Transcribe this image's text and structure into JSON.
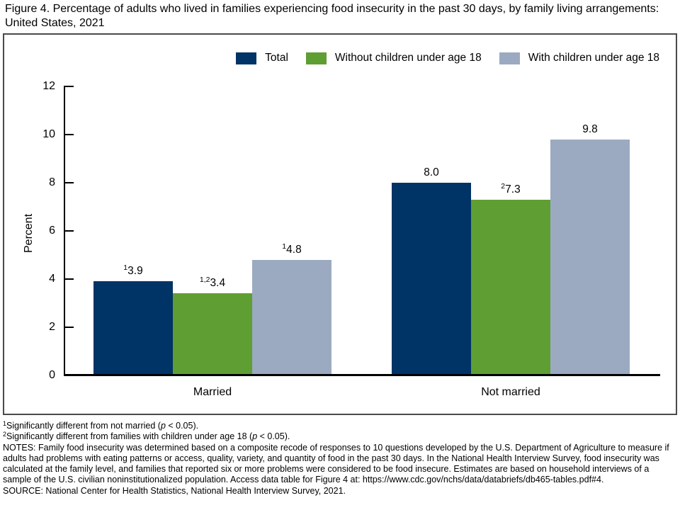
{
  "figure_title": "Figure 4. Percentage of adults who lived in families experiencing food insecurity in the past 30 days, by family living arrangements: United States, 2021",
  "chart_data": {
    "type": "bar",
    "categories": [
      "Married",
      "Not married"
    ],
    "series": [
      {
        "name": "Total",
        "color": "#003366",
        "values": [
          3.9,
          8.0
        ],
        "labels": [
          "3.9",
          "8.0"
        ],
        "sups": [
          "1",
          ""
        ]
      },
      {
        "name": "Without children under age 18",
        "color": "#5f9e33",
        "values": [
          3.4,
          7.3
        ],
        "labels": [
          "3.4",
          "7.3"
        ],
        "sups": [
          "1,2",
          "2"
        ]
      },
      {
        "name": "With children under age 18",
        "color": "#9baac0",
        "values": [
          4.8,
          9.8
        ],
        "labels": [
          "4.8",
          "9.8"
        ],
        "sups": [
          "1",
          ""
        ]
      }
    ],
    "ylabel": "Percent",
    "ylim": [
      0,
      12
    ],
    "yticks": [
      "12",
      "10",
      "8",
      "6",
      "4",
      "2",
      "0"
    ],
    "grid": false,
    "legend_position": "top-right"
  },
  "footnotes": {
    "fn1": {
      "sup": "1",
      "before_p": "Significantly different from not married (",
      "p_var": "p",
      "after_p": " < 0.05)."
    },
    "fn2": {
      "sup": "2",
      "before_p": "Significantly different from families with children under age 18 (",
      "p_var": "p",
      "after_p": " < 0.05)."
    },
    "notes": "NOTES: Family food insecurity was determined based on a composite recode of responses to 10 questions developed by the U.S. Department of Agriculture to measure if adults had problems with eating patterns or access, quality, variety, and quantity of food in the past 30 days. In the National Health Interview Survey, food insecurity was calculated at the family level, and families that reported six or more problems were considered to be food insecure. Estimates are based on household interviews of a sample of the U.S. civilian noninstitutionalized population. Access data table for Figure 4 at: https://www.cdc.gov/nchs/data/databriefs/db465-tables.pdf#4.",
    "source": "SOURCE: National Center for Health Statistics, National Health Interview Survey, 2021."
  }
}
